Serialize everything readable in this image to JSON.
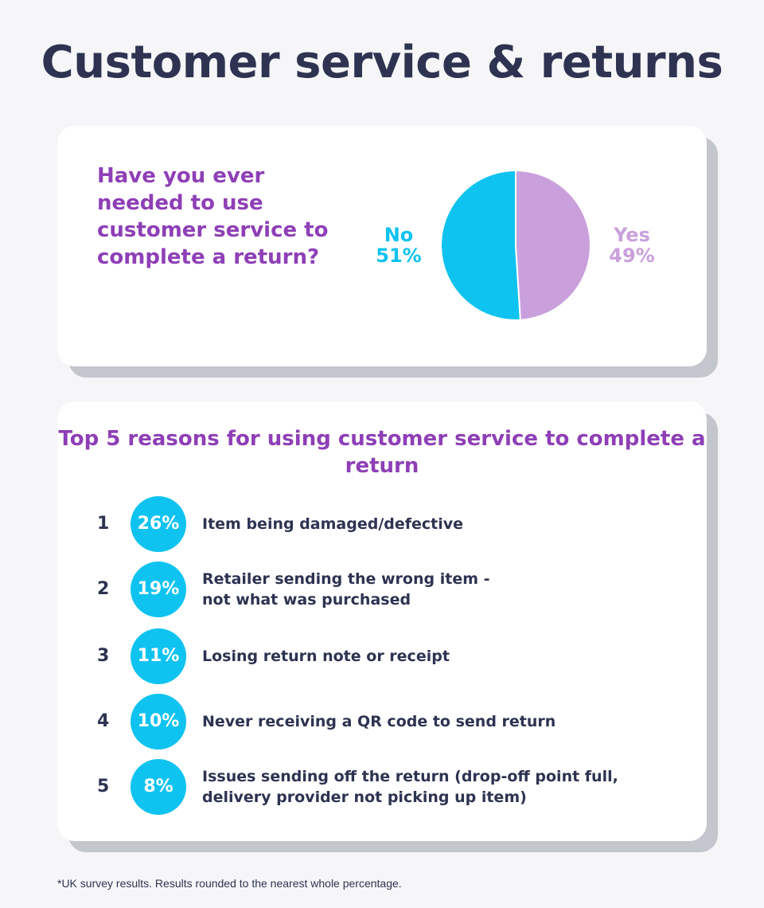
{
  "title": "Customer service & returns",
  "chart_data": [
    {
      "type": "pie",
      "title": "Have you ever needed to use customer service to complete a return?",
      "slices": [
        {
          "label": "No",
          "value": 51,
          "display": "51%",
          "color": "#0fc3f0"
        },
        {
          "label": "Yes",
          "value": 49,
          "display": "49%",
          "color": "#c9a0dc"
        }
      ]
    },
    {
      "type": "table",
      "title": "Top 5 reasons for using customer service to complete a return",
      "rows": [
        {
          "rank": "1",
          "percent": "26%",
          "reason": "Item being damaged/defective"
        },
        {
          "rank": "2",
          "percent": "19%",
          "reason": "Retailer sending the wrong item - not what was purchased"
        },
        {
          "rank": "3",
          "percent": "11%",
          "reason": "Losing return note or receipt"
        },
        {
          "rank": "4",
          "percent": "10%",
          "reason": "Never receiving a QR code to send return"
        },
        {
          "rank": "5",
          "percent": "8%",
          "reason": "Issues sending off the return (drop-off point full, delivery provider not picking up item)"
        }
      ]
    }
  ],
  "footnote": "*UK survey results. Results rounded to the nearest whole percentage."
}
